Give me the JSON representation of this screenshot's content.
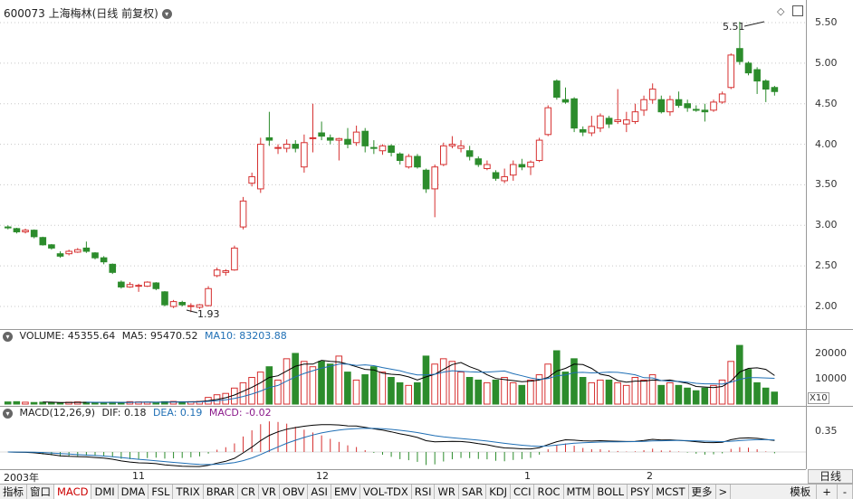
{
  "header": {
    "title": "600073 上海梅林(日线 前复权)",
    "annotation_high": "5.51",
    "annotation_low": "1.93"
  },
  "price_axis": {
    "labels": [
      "5.50",
      "5.00",
      "4.50",
      "4.00",
      "3.50",
      "3.00",
      "2.50",
      "2.00"
    ]
  },
  "volume_panel": {
    "label_name": "VOLUME:",
    "label_value": "45355.64",
    "ma5_label": "MA5:",
    "ma5_value": "95470.52",
    "ma10_label": "MA10:",
    "ma10_value": "83203.88",
    "axis_labels": [
      "20000",
      "10000"
    ],
    "unit": "X10"
  },
  "macd_panel": {
    "label": "MACD(12,26,9)",
    "dif_label": "DIF:",
    "dif_value": "0.18",
    "dea_label": "DEA:",
    "dea_value": "0.19",
    "macd_label": "MACD:",
    "macd_value": "-0.02",
    "axis_label": "0.35"
  },
  "time_axis": {
    "labels": [
      "2003年",
      "11",
      "12",
      "1",
      "2"
    ],
    "period": "日线"
  },
  "tabs": [
    "指标",
    "窗口",
    "MACD",
    "DMI",
    "DMA",
    "FSL",
    "TRIX",
    "BRAR",
    "CR",
    "VR",
    "OBV",
    "ASI",
    "EMV",
    "VOL-TDX",
    "RSI",
    "WR",
    "SAR",
    "KDJ",
    "CCI",
    "ROC",
    "MTM",
    "BOLL",
    "PSY",
    "MCST",
    "更多",
    ">"
  ],
  "right_tabs": [
    "模板",
    "+",
    "-"
  ],
  "colors": {
    "up": "#d63030",
    "down": "#2c8c2c",
    "dif": "#000000",
    "dea": "#1f6fb5",
    "ma10": "#1f6fb5"
  },
  "chart_data": {
    "type": "candlestick",
    "title": "600073 上海梅林(日线 前复权)",
    "ylim": [
      1.75,
      5.7
    ],
    "candles": [
      [
        2.98,
        3.0,
        2.95,
        2.97
      ],
      [
        2.96,
        2.97,
        2.9,
        2.92
      ],
      [
        2.92,
        2.96,
        2.9,
        2.94
      ],
      [
        2.94,
        2.95,
        2.84,
        2.86
      ],
      [
        2.85,
        2.86,
        2.75,
        2.76
      ],
      [
        2.76,
        2.77,
        2.7,
        2.72
      ],
      [
        2.65,
        2.68,
        2.6,
        2.62
      ],
      [
        2.65,
        2.7,
        2.63,
        2.68
      ],
      [
        2.67,
        2.72,
        2.66,
        2.7
      ],
      [
        2.72,
        2.8,
        2.66,
        2.68
      ],
      [
        2.66,
        2.67,
        2.58,
        2.6
      ],
      [
        2.6,
        2.62,
        2.52,
        2.55
      ],
      [
        2.52,
        2.53,
        2.4,
        2.42
      ],
      [
        2.3,
        2.32,
        2.22,
        2.24
      ],
      [
        2.24,
        2.3,
        2.23,
        2.27
      ],
      [
        2.26,
        2.28,
        2.18,
        2.26
      ],
      [
        2.25,
        2.31,
        2.24,
        2.3
      ],
      [
        2.29,
        2.3,
        2.2,
        2.22
      ],
      [
        2.18,
        2.19,
        2.0,
        2.02
      ],
      [
        2.0,
        2.08,
        1.98,
        2.06
      ],
      [
        2.05,
        2.07,
        2.0,
        2.02
      ],
      [
        2.0,
        2.04,
        1.93,
        2.01
      ],
      [
        1.99,
        2.03,
        1.97,
        2.02
      ],
      [
        2.01,
        2.25,
        2.0,
        2.22
      ],
      [
        2.38,
        2.48,
        2.36,
        2.45
      ],
      [
        2.42,
        2.46,
        2.38,
        2.44
      ],
      [
        2.45,
        2.75,
        2.44,
        2.72
      ],
      [
        2.98,
        3.35,
        2.95,
        3.3
      ],
      [
        3.52,
        3.65,
        3.48,
        3.6
      ],
      [
        3.45,
        4.08,
        3.4,
        4.0
      ],
      [
        4.08,
        4.4,
        3.98,
        4.05
      ],
      [
        3.95,
        4.0,
        3.88,
        3.96
      ],
      [
        3.95,
        4.06,
        3.9,
        4.0
      ],
      [
        4.0,
        4.05,
        3.9,
        3.95
      ],
      [
        3.72,
        4.12,
        3.65,
        4.02
      ],
      [
        4.07,
        4.5,
        3.9,
        4.08
      ],
      [
        4.14,
        4.28,
        4.05,
        4.1
      ],
      [
        4.08,
        4.12,
        4.0,
        4.05
      ],
      [
        4.05,
        4.08,
        3.8,
        4.07
      ],
      [
        4.06,
        4.2,
        3.95,
        4.0
      ],
      [
        4.02,
        4.23,
        3.98,
        4.15
      ],
      [
        4.16,
        4.2,
        3.9,
        3.98
      ],
      [
        3.96,
        4.05,
        3.88,
        3.95
      ],
      [
        3.92,
        4.0,
        3.87,
        3.98
      ],
      [
        3.98,
        4.0,
        3.85,
        3.9
      ],
      [
        3.88,
        3.9,
        3.75,
        3.8
      ],
      [
        3.72,
        3.88,
        3.7,
        3.85
      ],
      [
        3.85,
        3.88,
        3.7,
        3.72
      ],
      [
        3.68,
        3.7,
        3.4,
        3.45
      ],
      [
        3.45,
        3.75,
        3.1,
        3.72
      ],
      [
        3.75,
        4.02,
        3.73,
        3.98
      ],
      [
        3.98,
        4.1,
        3.95,
        4.0
      ],
      [
        3.95,
        4.05,
        3.9,
        3.98
      ],
      [
        3.92,
        3.98,
        3.8,
        3.85
      ],
      [
        3.82,
        3.85,
        3.72,
        3.75
      ],
      [
        3.7,
        3.8,
        3.68,
        3.75
      ],
      [
        3.65,
        3.68,
        3.55,
        3.58
      ],
      [
        3.55,
        3.7,
        3.52,
        3.6
      ],
      [
        3.62,
        3.8,
        3.55,
        3.75
      ],
      [
        3.75,
        3.82,
        3.68,
        3.72
      ],
      [
        3.72,
        3.8,
        3.62,
        3.78
      ],
      [
        3.8,
        4.08,
        3.78,
        4.05
      ],
      [
        4.12,
        4.48,
        4.1,
        4.45
      ],
      [
        4.78,
        4.8,
        4.55,
        4.58
      ],
      [
        4.55,
        4.7,
        4.5,
        4.52
      ],
      [
        4.56,
        4.58,
        4.15,
        4.2
      ],
      [
        4.18,
        4.22,
        4.1,
        4.15
      ],
      [
        4.14,
        4.35,
        4.1,
        4.22
      ],
      [
        4.2,
        4.38,
        4.15,
        4.35
      ],
      [
        4.32,
        4.35,
        4.2,
        4.25
      ],
      [
        4.28,
        4.68,
        4.25,
        4.3
      ],
      [
        4.25,
        4.4,
        4.15,
        4.3
      ],
      [
        4.28,
        4.5,
        4.25,
        4.4
      ],
      [
        4.42,
        4.6,
        4.35,
        4.55
      ],
      [
        4.55,
        4.75,
        4.5,
        4.68
      ],
      [
        4.55,
        4.6,
        4.38,
        4.4
      ],
      [
        4.4,
        4.6,
        4.35,
        4.55
      ],
      [
        4.55,
        4.65,
        4.45,
        4.48
      ],
      [
        4.5,
        4.55,
        4.4,
        4.45
      ],
      [
        4.43,
        4.48,
        4.4,
        4.42
      ],
      [
        4.42,
        4.5,
        4.28,
        4.4
      ],
      [
        4.42,
        4.55,
        4.4,
        4.52
      ],
      [
        4.52,
        4.65,
        4.5,
        4.62
      ],
      [
        4.7,
        5.12,
        4.68,
        5.1
      ],
      [
        5.18,
        5.51,
        4.98,
        5.02
      ],
      [
        5.0,
        5.02,
        4.85,
        4.88
      ],
      [
        4.92,
        4.95,
        4.62,
        4.78
      ],
      [
        4.78,
        4.8,
        4.52,
        4.68
      ],
      [
        4.7,
        4.72,
        4.6,
        4.65
      ]
    ],
    "volume": [
      800,
      900,
      700,
      600,
      700,
      600,
      500,
      700,
      800,
      700,
      600,
      500,
      700,
      600,
      900,
      800,
      700,
      600,
      900,
      1000,
      800,
      900,
      1000,
      2500,
      3500,
      4000,
      6000,
      8000,
      10000,
      12000,
      14000,
      9000,
      17000,
      19000,
      16000,
      14000,
      16000,
      15000,
      18000,
      12000,
      9000,
      11000,
      14000,
      12000,
      10000,
      8000,
      7000,
      8000,
      18000,
      15000,
      17000,
      16000,
      12000,
      10000,
      9000,
      8000,
      9000,
      10000,
      8000,
      7000,
      9000,
      11000,
      15000,
      20000,
      12000,
      17000,
      10000,
      8000,
      9000,
      9000,
      8000,
      7000,
      10000,
      9000,
      11000,
      7000,
      8000,
      7000,
      6000,
      5000,
      6000,
      7000,
      9000,
      16000,
      22000,
      13000,
      8000,
      6000,
      4500
    ],
    "macd": {
      "dif": 0.18,
      "dea": 0.19,
      "macd": -0.02
    }
  }
}
